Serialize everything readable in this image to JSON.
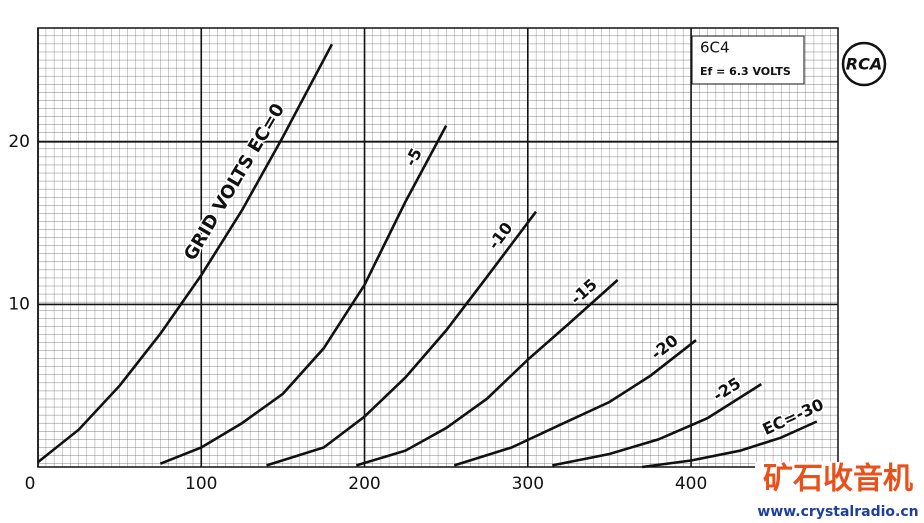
{
  "chart_data": {
    "type": "line",
    "xlim": [
      0,
      490
    ],
    "ylim": [
      0,
      27
    ],
    "xticks": [
      0,
      100,
      200,
      300,
      400
    ],
    "yticks": [
      10,
      20
    ],
    "grid": true,
    "series": [
      {
        "name": "GRID VOLTS EC=0",
        "color": "#111111",
        "x": [
          0,
          25,
          50,
          75,
          100,
          125,
          150,
          180
        ],
        "values": [
          0.3,
          2.3,
          5,
          8.2,
          11.8,
          15.8,
          20.3,
          26
        ]
      },
      {
        "name": "-5",
        "color": "#111111",
        "x": [
          75,
          100,
          125,
          150,
          175,
          200,
          225,
          250
        ],
        "values": [
          0.2,
          1.2,
          2.7,
          4.5,
          7.3,
          11.2,
          16.3,
          21
        ]
      },
      {
        "name": "-10",
        "color": "#111111",
        "x": [
          140,
          175,
          200,
          225,
          250,
          275,
          305
        ],
        "values": [
          0.1,
          1.2,
          3.1,
          5.5,
          8.4,
          11.7,
          15.7
        ]
      },
      {
        "name": "-15",
        "color": "#111111",
        "x": [
          195,
          225,
          250,
          275,
          300,
          325,
          355
        ],
        "values": [
          0.1,
          1,
          2.4,
          4.2,
          6.6,
          8.8,
          11.5
        ]
      },
      {
        "name": "-20",
        "color": "#111111",
        "x": [
          255,
          290,
          320,
          350,
          375,
          403
        ],
        "values": [
          0.1,
          1.2,
          2.6,
          4,
          5.6,
          7.8
        ]
      },
      {
        "name": "-25",
        "color": "#111111",
        "x": [
          315,
          350,
          380,
          410,
          443
        ],
        "values": [
          0.1,
          0.8,
          1.7,
          3,
          5.1
        ]
      },
      {
        "name": "EC=-30",
        "color": "#111111",
        "x": [
          370,
          400,
          430,
          455,
          477
        ],
        "values": [
          0,
          0.4,
          1,
          1.8,
          2.8
        ]
      }
    ],
    "annotations": [
      "6C4",
      "Ef = 6.3 VOLTS"
    ],
    "logo": "RCA",
    "watermark": [
      "矿石收音机",
      "www.crystalradio.cn"
    ]
  }
}
